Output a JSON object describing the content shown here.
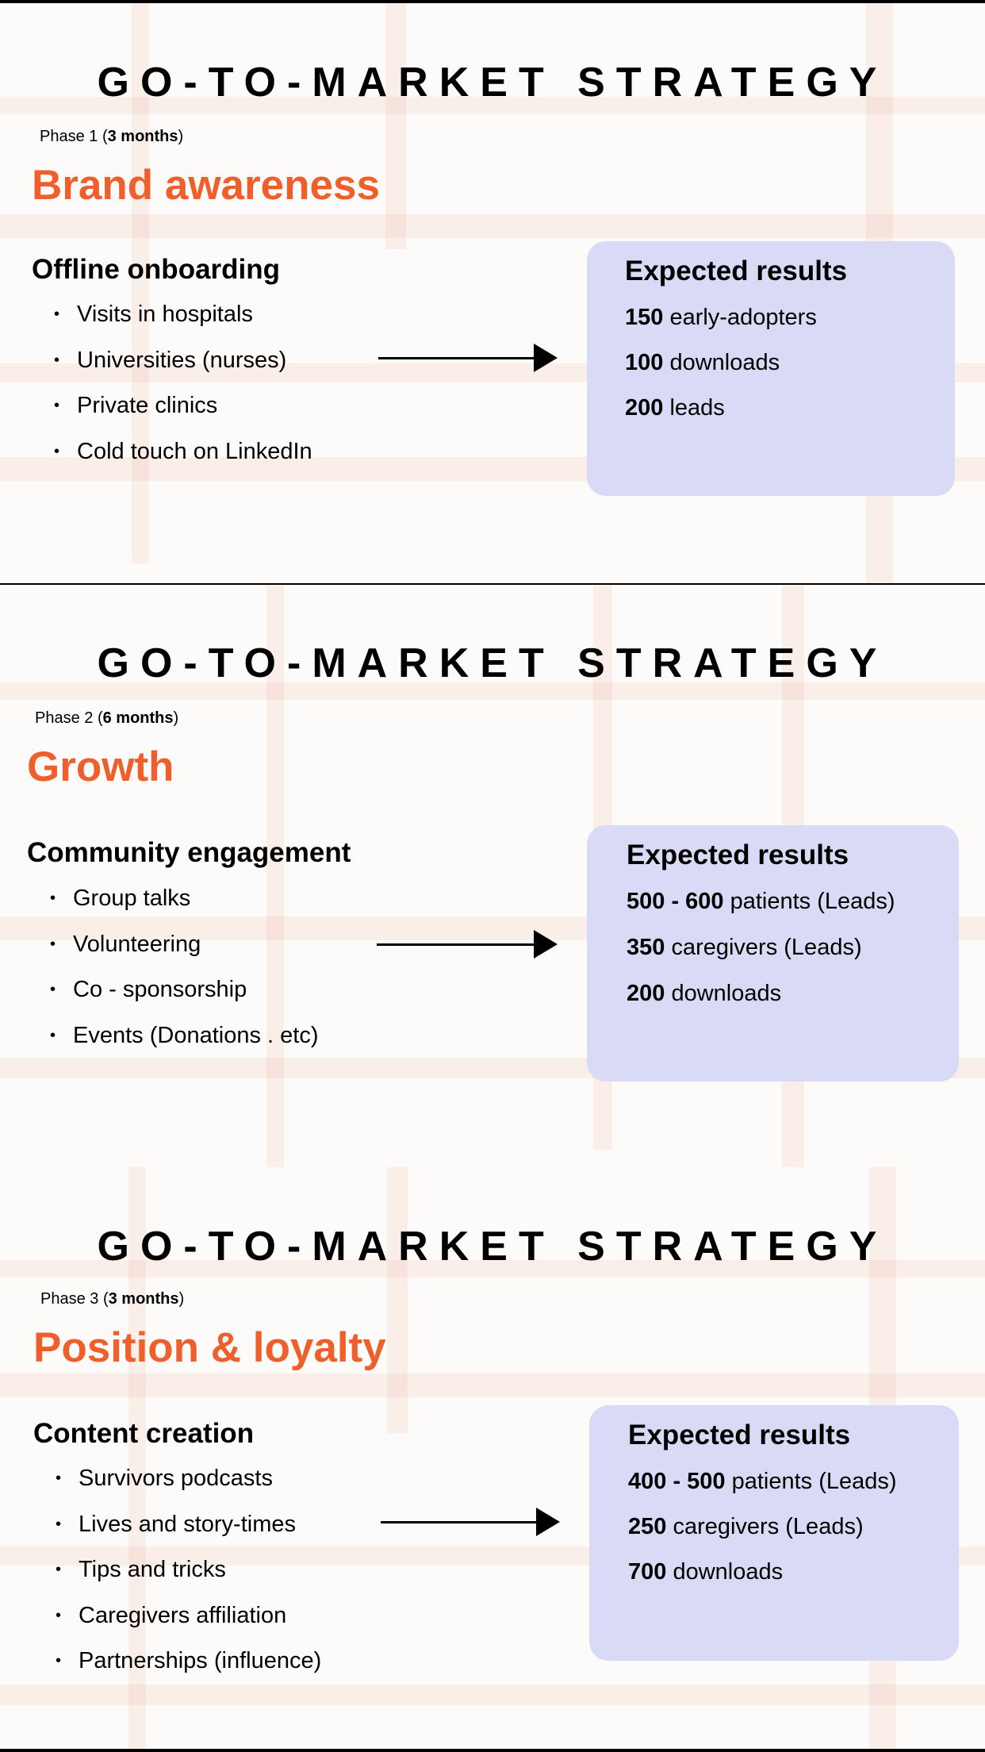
{
  "slides": [
    {
      "title": "GO-TO-MARKET STRATEGY",
      "phase": {
        "prefix": "Phase 1 (",
        "duration": "3 months",
        "suffix": ")"
      },
      "heading": "Brand awareness",
      "subheading": "Offline onboarding",
      "bullets": [
        "Visits in hospitals",
        "Universities (nurses)",
        "Private clinics",
        "Cold touch on LinkedIn"
      ],
      "results": {
        "title": "Expected results",
        "rows": [
          {
            "value": "150",
            "text": " early-adopters"
          },
          {
            "value": "100",
            "text": " downloads"
          },
          {
            "value": "200",
            "text": " leads"
          }
        ]
      }
    },
    {
      "title": "GO-TO-MARKET STRATEGY",
      "phase": {
        "prefix": "Phase 2 (",
        "duration": "6 months",
        "suffix": ")"
      },
      "heading": "Growth",
      "subheading": "Community engagement",
      "bullets": [
        "Group talks",
        "Volunteering",
        "Co - sponsorship",
        "Events (Donations . etc)"
      ],
      "results": {
        "title": "Expected results",
        "rows": [
          {
            "value": "500 - 600",
            "text": " patients (Leads)"
          },
          {
            "value": "350",
            "text": " caregivers (Leads)"
          },
          {
            "value": "200",
            "text": " downloads"
          }
        ]
      }
    },
    {
      "title": "GO-TO-MARKET STRATEGY",
      "phase": {
        "prefix": "Phase 3 (",
        "duration": "3 months",
        "suffix": ")"
      },
      "heading": "Position & loyalty",
      "subheading": "Content creation",
      "bullets": [
        "Survivors podcasts",
        "Lives and story-times",
        "Tips and tricks",
        "Caregivers affiliation",
        "Partnerships (influence)"
      ],
      "results": {
        "title": "Expected results",
        "rows": [
          {
            "value": "400 - 500",
            "text": " patients (Leads)"
          },
          {
            "value": "250",
            "text": " caregivers (Leads)"
          },
          {
            "value": "700",
            "text": " downloads"
          }
        ]
      }
    }
  ],
  "colors": {
    "accent": "#ee5f2b",
    "results_box": "#d9daf5",
    "background": "#fdfbfa"
  }
}
